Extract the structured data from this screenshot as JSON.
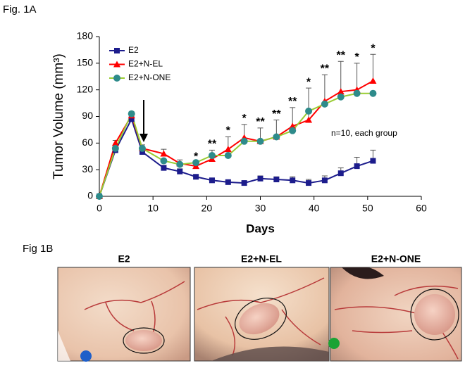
{
  "figure_label": "Fig. 1A",
  "chart_data": {
    "type": "line",
    "x_label": "Days",
    "y_label": "Tumor Volume (mm³)",
    "x": [
      0,
      3,
      6,
      8,
      12,
      15,
      18,
      21,
      24,
      27,
      30,
      33,
      36,
      39,
      42,
      45,
      48,
      51
    ],
    "series": [
      {
        "name": "E2",
        "color": "#1c1c8c",
        "marker": "square",
        "values": [
          0,
          52,
          87,
          50,
          32,
          28,
          22,
          18,
          16,
          15,
          20,
          19,
          18,
          15,
          18,
          26,
          34,
          40
        ],
        "errors": [
          0,
          3,
          6,
          3,
          3,
          3,
          2,
          2,
          2,
          2,
          3,
          3,
          4,
          4,
          5,
          6,
          10,
          12
        ]
      },
      {
        "name": "E2+N-EL",
        "color": "#ff0000",
        "marker": "triangle",
        "values": [
          0,
          60,
          91,
          54,
          48,
          37,
          34,
          42,
          53,
          66,
          62,
          67,
          79,
          86,
          107,
          118,
          120,
          130
        ],
        "errors": [
          0,
          3,
          4,
          4,
          5,
          4,
          4,
          10,
          14,
          15,
          15,
          19,
          21,
          36,
          30,
          34,
          30,
          30
        ]
      },
      {
        "name": "E2+N-ONE",
        "color": "#99cc33",
        "marker_color": "#2e8b8b",
        "marker": "circle",
        "values": [
          0,
          54,
          93,
          54,
          40,
          36,
          38,
          46,
          46,
          62,
          62,
          67,
          74,
          96,
          104,
          112,
          116,
          116
        ]
      }
    ],
    "significance": [
      null,
      null,
      null,
      null,
      null,
      null,
      "*",
      "**",
      "*",
      "*",
      "**",
      "**",
      "**",
      "*",
      "**",
      "**",
      "*",
      "*"
    ],
    "note": "n=10, each group",
    "xlim": [
      0,
      60
    ],
    "xticks": [
      0,
      10,
      20,
      30,
      40,
      50,
      60
    ],
    "ylim": [
      0,
      180
    ],
    "yticks": [
      0,
      30,
      60,
      90,
      120,
      150,
      180
    ],
    "legend": "upper-left"
  },
  "panel_b": {
    "label": "Fig 1B",
    "panels": [
      "E2",
      "E2+N-EL",
      "E2+N-ONE"
    ]
  }
}
